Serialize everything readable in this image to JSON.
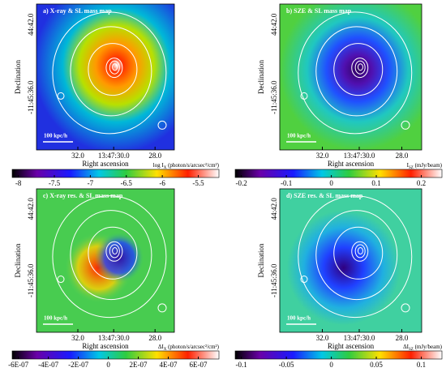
{
  "panels": [
    {
      "title": "a) X-ray & SL mass map",
      "scale_bar": "100 kpc/h",
      "xlabel": "Right ascension",
      "ylabel": "Declination",
      "xticks": [
        "32.0",
        "13:47:30.0",
        "28.0"
      ],
      "yticks": [
        "44:42.0",
        "-11:45:36.0"
      ],
      "colorbar": {
        "label": {
          "pre": "log I",
          "sub": "X",
          "unit": " (photon/s/arcsec²/cm²)"
        },
        "ticks": [
          "-8",
          "-7.5",
          "-7",
          "-6.5",
          "-6",
          "-5.5"
        ]
      }
    },
    {
      "title": "b) SZE & SL mass map",
      "scale_bar": "100 kpc/h",
      "xlabel": "Right ascension",
      "ylabel": "Declination",
      "xticks": [
        "32.0",
        "13:47:30.0",
        "28.0"
      ],
      "yticks": [
        "44:42.0",
        "-11:45:36.0"
      ],
      "colorbar": {
        "label": {
          "pre": "I",
          "sub": "SZ",
          "unit": " (mJy/beam)"
        },
        "ticks": [
          "-0.2",
          "-0.1",
          "0",
          "0.1",
          "0.2"
        ]
      }
    },
    {
      "title": "c) X-ray res. & SL mass map",
      "scale_bar": "100 kpc/h",
      "xlabel": "Right ascension",
      "ylabel": "Declination",
      "xticks": [
        "32.0",
        "13:47:30.0",
        "28.0"
      ],
      "yticks": [
        "44:42.0",
        "-11:45:36.0"
      ],
      "colorbar": {
        "label": {
          "pre": "ΔI",
          "sub": "X",
          "unit": " (photon/s/arcsec²/cm²)"
        },
        "ticks": [
          "-6E-07",
          "-4E-07",
          "-2E-07",
          "0",
          "2E-07",
          "4E-07",
          "6E-07"
        ]
      }
    },
    {
      "title": "d) SZE res. & SL mass map",
      "scale_bar": "100 kpc/h",
      "xlabel": "Right ascension",
      "ylabel": "Declination",
      "xticks": [
        "32.0",
        "13:47:30.0",
        "28.0"
      ],
      "yticks": [
        "44:42.0",
        "-11:45:36.0"
      ],
      "colorbar": {
        "label": {
          "pre": "ΔI",
          "sub": "SZ",
          "unit": " (mJy/beam)"
        },
        "ticks": [
          "-0.1",
          "-0.05",
          "0",
          "0.05",
          "0.1"
        ]
      }
    }
  ]
}
